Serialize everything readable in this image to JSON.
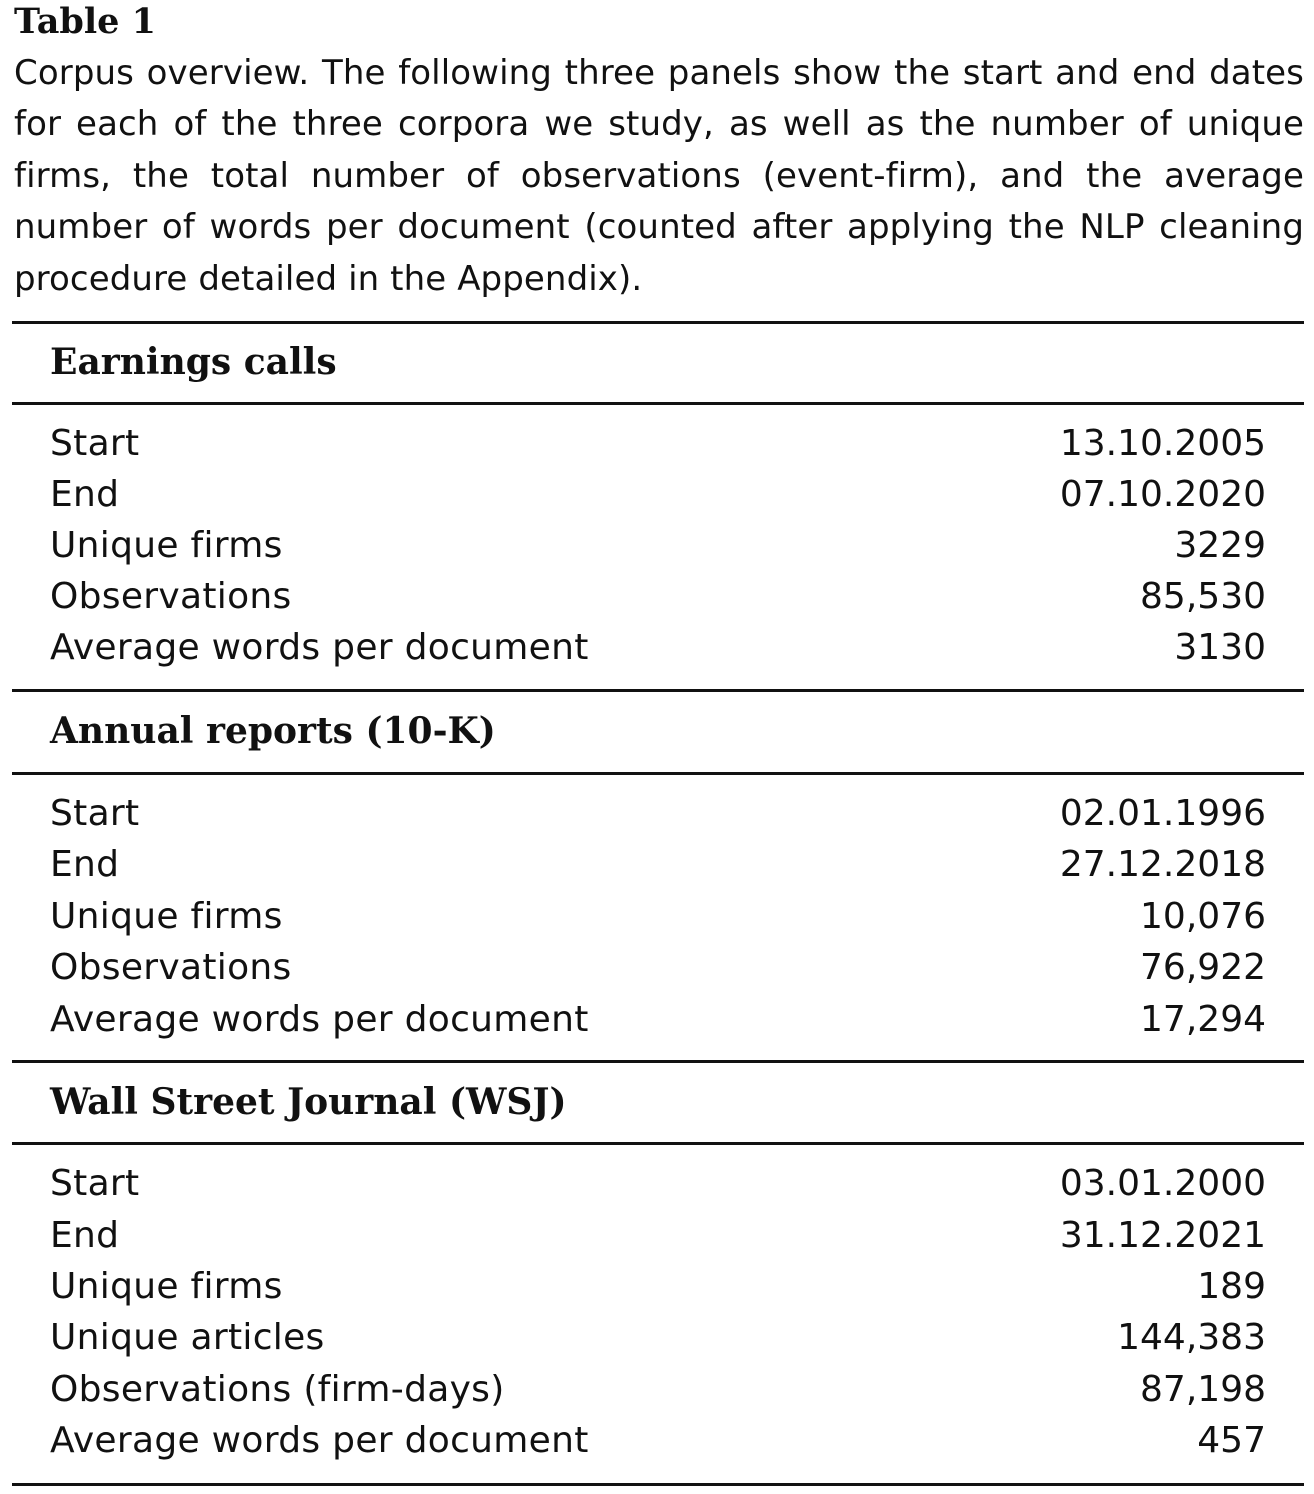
{
  "table_title": "Table 1",
  "caption": "Corpus overview. The following three panels show the start and end dates for each of the three corpora we study, as well as the number of unique firms, the total number of observations (event-firm), and the average number of words per document (counted after applying the NLP cleaning procedure detailed in the Appendix).",
  "panels": [
    {
      "heading": "Earnings calls",
      "rows": [
        {
          "label": "Start",
          "value": "13.10.2005"
        },
        {
          "label": "End",
          "value": "07.10.2020"
        },
        {
          "label": "Unique firms",
          "value": "3229"
        },
        {
          "label": "Observations",
          "value": "85,530"
        },
        {
          "label": "Average words per document",
          "value": "3130"
        }
      ]
    },
    {
      "heading": "Annual reports (10-K)",
      "rows": [
        {
          "label": "Start",
          "value": "02.01.1996"
        },
        {
          "label": "End",
          "value": "27.12.2018"
        },
        {
          "label": "Unique firms",
          "value": "10,076"
        },
        {
          "label": "Observations",
          "value": "76,922"
        },
        {
          "label": "Average words per document",
          "value": "17,294"
        }
      ]
    },
    {
      "heading": "Wall Street Journal (WSJ)",
      "rows": [
        {
          "label": "Start",
          "value": "03.01.2000"
        },
        {
          "label": "End",
          "value": "31.12.2021"
        },
        {
          "label": "Unique firms",
          "value": "189"
        },
        {
          "label": "Unique articles",
          "value": "144,383"
        },
        {
          "label": "Observations (firm-days)",
          "value": "87,198"
        },
        {
          "label": "Average words per document",
          "value": "457"
        }
      ]
    }
  ]
}
